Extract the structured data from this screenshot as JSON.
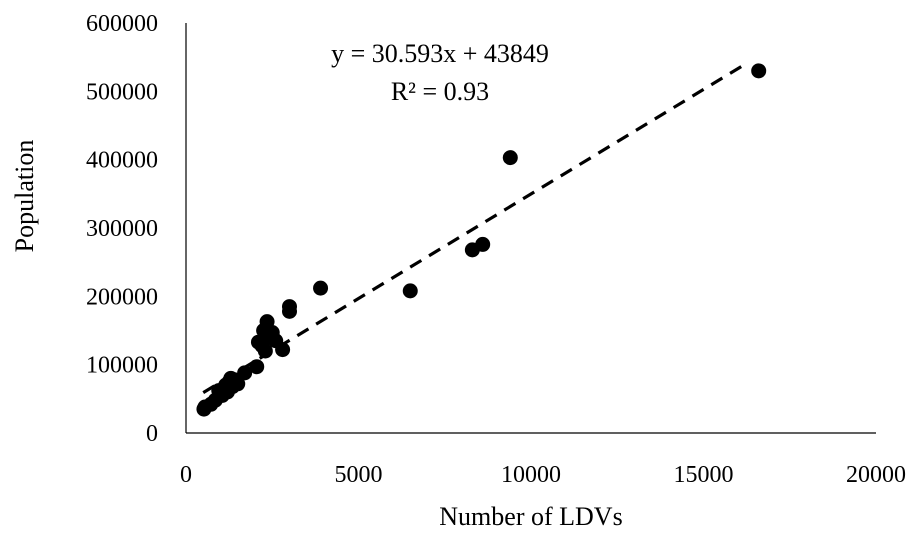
{
  "chart_data": {
    "type": "scatter",
    "xlabel": "Number of LDVs",
    "ylabel": "Population",
    "xlim": [
      0,
      20000
    ],
    "ylim": [
      0,
      600000
    ],
    "x_ticks": [
      0,
      5000,
      10000,
      15000,
      20000
    ],
    "y_ticks": [
      0,
      100000,
      200000,
      300000,
      400000,
      500000,
      600000
    ],
    "x_tick_labels": [
      "0",
      "5000",
      "10000",
      "15000",
      "20000"
    ],
    "y_tick_labels": [
      "0",
      "100000",
      "200000",
      "300000",
      "400000",
      "500000",
      "600000"
    ],
    "grid": false,
    "legend": "none",
    "marker_color": "#000000",
    "points": [
      {
        "x": 520,
        "y": 35000
      },
      {
        "x": 550,
        "y": 38000
      },
      {
        "x": 720,
        "y": 42000
      },
      {
        "x": 850,
        "y": 48000
      },
      {
        "x": 950,
        "y": 62000
      },
      {
        "x": 1050,
        "y": 55000
      },
      {
        "x": 1100,
        "y": 65000
      },
      {
        "x": 1150,
        "y": 70000
      },
      {
        "x": 1200,
        "y": 60000
      },
      {
        "x": 1250,
        "y": 75000
      },
      {
        "x": 1300,
        "y": 80000
      },
      {
        "x": 1350,
        "y": 68000
      },
      {
        "x": 1400,
        "y": 78000
      },
      {
        "x": 1500,
        "y": 72000
      },
      {
        "x": 1700,
        "y": 88000
      },
      {
        "x": 2050,
        "y": 97000
      },
      {
        "x": 2100,
        "y": 133000
      },
      {
        "x": 2200,
        "y": 128000
      },
      {
        "x": 2250,
        "y": 150000
      },
      {
        "x": 2300,
        "y": 120000
      },
      {
        "x": 2350,
        "y": 163000
      },
      {
        "x": 2400,
        "y": 140000
      },
      {
        "x": 2500,
        "y": 147000
      },
      {
        "x": 2600,
        "y": 135000
      },
      {
        "x": 2800,
        "y": 122000
      },
      {
        "x": 3000,
        "y": 178000
      },
      {
        "x": 3000,
        "y": 185000
      },
      {
        "x": 3900,
        "y": 212000
      },
      {
        "x": 6500,
        "y": 208000
      },
      {
        "x": 8300,
        "y": 268000
      },
      {
        "x": 8600,
        "y": 276000
      },
      {
        "x": 9400,
        "y": 403000
      },
      {
        "x": 16600,
        "y": 530000
      }
    ],
    "trendline": {
      "slope": 30.593,
      "intercept": 43849,
      "x_range": [
        500,
        16300
      ],
      "style": "dashed",
      "equation_label": "y = 30.593x + 43849",
      "r2_label": "R² = 0.93"
    }
  }
}
